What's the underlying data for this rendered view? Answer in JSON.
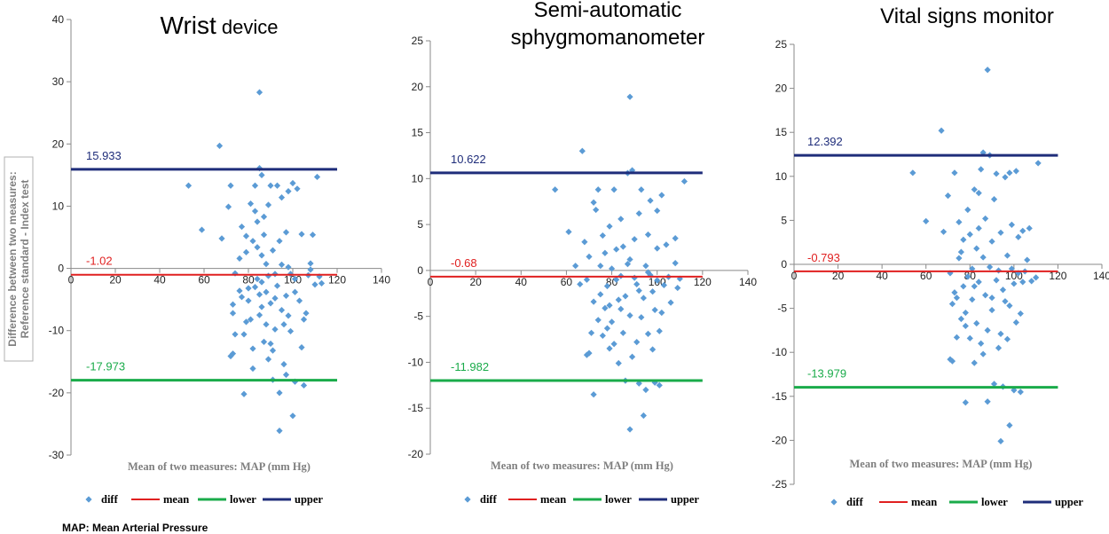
{
  "footnote": "MAP: Mean Arterial Pressure",
  "y_axis_title": [
    "Difference between two measures:",
    "Reference standard - Index test"
  ],
  "colors": {
    "diff": "#5b9bd5",
    "mean": "#e02020",
    "lower": "#1aab4a",
    "upper": "#1f2d7a"
  },
  "legend": [
    "diff",
    "mean",
    "lower",
    "upper"
  ],
  "chart_data": [
    {
      "type": "scatter",
      "title_main": "Wrist",
      "title_rest": " device",
      "xlabel": "Mean of two measures: MAP (mm Hg)",
      "xlim": [
        0,
        140
      ],
      "xticks": [
        0,
        20,
        40,
        60,
        80,
        100,
        120,
        140
      ],
      "ylim": [
        -30,
        40
      ],
      "yticks": [
        -30,
        -20,
        -10,
        0,
        10,
        20,
        30,
        40
      ],
      "line_xmax": 120,
      "mean": -1.02,
      "lower": -17.973,
      "upper": 15.933,
      "mean_label": "-1.02",
      "lower_label": "-17.973",
      "upper_label": "15.933",
      "points": [
        [
          53,
          13.3
        ],
        [
          59,
          6.2
        ],
        [
          67,
          19.7
        ],
        [
          68,
          4.8
        ],
        [
          71,
          9.9
        ],
        [
          72,
          13.3
        ],
        [
          74,
          -0.8
        ],
        [
          73,
          -5.8
        ],
        [
          73,
          -7.2
        ],
        [
          73,
          -13.7
        ],
        [
          72,
          -14.1
        ],
        [
          74,
          -10.6
        ],
        [
          76,
          1.6
        ],
        [
          77,
          -4.6
        ],
        [
          78,
          -10.6
        ],
        [
          77,
          6.7
        ],
        [
          78,
          -20.2
        ],
        [
          79,
          5.2
        ],
        [
          79,
          2.6
        ],
        [
          80,
          -3.2
        ],
        [
          80,
          -5.2
        ],
        [
          81,
          -8.2
        ],
        [
          81,
          10.4
        ],
        [
          82,
          -12.9
        ],
        [
          82,
          -16.1
        ],
        [
          83,
          13.3
        ],
        [
          83,
          9.2
        ],
        [
          84,
          -1.7
        ],
        [
          84,
          3.4
        ],
        [
          85,
          -4.2
        ],
        [
          85,
          -7.5
        ],
        [
          84,
          7.5
        ],
        [
          85,
          28.3
        ],
        [
          85,
          16.1
        ],
        [
          86,
          15.0
        ],
        [
          86,
          2.1
        ],
        [
          86,
          -2.2
        ],
        [
          87,
          -11.8
        ],
        [
          87,
          5.4
        ],
        [
          88,
          0.7
        ],
        [
          88,
          -3.8
        ],
        [
          88,
          -9.0
        ],
        [
          89,
          -14.6
        ],
        [
          89,
          10.2
        ],
        [
          90,
          13.3
        ],
        [
          90,
          -5.6
        ],
        [
          90,
          -12.1
        ],
        [
          91,
          2.9
        ],
        [
          91,
          -17.9
        ],
        [
          92,
          -0.9
        ],
        [
          92,
          -4.8
        ],
        [
          93,
          13.3
        ],
        [
          93,
          -2.8
        ],
        [
          94,
          -20.0
        ],
        [
          94,
          -26.1
        ],
        [
          94,
          4.4
        ],
        [
          95,
          11.4
        ],
        [
          95,
          -6.7
        ],
        [
          96,
          -9.0
        ],
        [
          96,
          -15.4
        ],
        [
          97,
          -17.1
        ],
        [
          97,
          5.8
        ],
        [
          97,
          -4.4
        ],
        [
          98,
          12.4
        ],
        [
          98,
          0.2
        ],
        [
          99,
          -0.9
        ],
        [
          99,
          -10.1
        ],
        [
          100,
          -23.7
        ],
        [
          100,
          13.7
        ],
        [
          101,
          -1.7
        ],
        [
          101,
          -3.8
        ],
        [
          101,
          -18.2
        ],
        [
          102,
          12.8
        ],
        [
          103,
          -5.2
        ],
        [
          104,
          5.5
        ],
        [
          104,
          -12.7
        ],
        [
          105,
          -8.2
        ],
        [
          105,
          -18.8
        ],
        [
          106,
          -7.2
        ],
        [
          107,
          -1.1
        ],
        [
          108,
          0.8
        ],
        [
          108,
          -0.2
        ],
        [
          109,
          5.4
        ],
        [
          110,
          -2.6
        ],
        [
          111,
          14.7
        ],
        [
          112,
          -1.3
        ],
        [
          113,
          -2.4
        ],
        [
          76,
          -3.6
        ],
        [
          79,
          -8.6
        ],
        [
          82,
          4.4
        ],
        [
          86,
          -6.2
        ],
        [
          89,
          -1.2
        ],
        [
          92,
          -9.8
        ],
        [
          95,
          0.6
        ],
        [
          98,
          -7.6
        ],
        [
          83,
          -3.0
        ],
        [
          87,
          8.3
        ],
        [
          91,
          -13.2
        ]
      ]
    },
    {
      "type": "scatter",
      "title_main": "Semi-automatic",
      "title_line2": "sphygmomanometer",
      "xlabel": "Mean of two measures: MAP (mm Hg)",
      "xlim": [
        0,
        140
      ],
      "xticks": [
        0,
        20,
        40,
        60,
        80,
        100,
        120,
        140
      ],
      "ylim": [
        -20,
        25
      ],
      "yticks": [
        -20,
        -15,
        -10,
        -5,
        0,
        5,
        10,
        15,
        20,
        25
      ],
      "line_xmax": 120,
      "mean": -0.68,
      "lower": -11.982,
      "upper": 10.622,
      "mean_label": "-0.68",
      "lower_label": "-11.982",
      "upper_label": "10.622",
      "points": [
        [
          55,
          8.8
        ],
        [
          61,
          4.2
        ],
        [
          67,
          13.0
        ],
        [
          68,
          3.1
        ],
        [
          69,
          -1.0
        ],
        [
          69,
          -9.2
        ],
        [
          70,
          -9.0
        ],
        [
          70,
          1.5
        ],
        [
          71,
          -6.8
        ],
        [
          72,
          -13.5
        ],
        [
          72,
          -3.4
        ],
        [
          73,
          6.6
        ],
        [
          74,
          -5.4
        ],
        [
          74,
          8.8
        ],
        [
          75,
          0.5
        ],
        [
          75,
          -2.6
        ],
        [
          76,
          -7.1
        ],
        [
          76,
          3.8
        ],
        [
          77,
          -4.1
        ],
        [
          77,
          1.9
        ],
        [
          78,
          -1.7
        ],
        [
          78,
          -6.3
        ],
        [
          79,
          4.8
        ],
        [
          79,
          -3.8
        ],
        [
          80,
          -5.6
        ],
        [
          80,
          0.2
        ],
        [
          81,
          8.8
        ],
        [
          81,
          -8.0
        ],
        [
          82,
          -1.0
        ],
        [
          82,
          2.3
        ],
        [
          83,
          -10.1
        ],
        [
          83,
          -3.2
        ],
        [
          84,
          5.6
        ],
        [
          84,
          -0.6
        ],
        [
          85,
          -6.8
        ],
        [
          85,
          2.6
        ],
        [
          86,
          -12.0
        ],
        [
          86,
          -2.8
        ],
        [
          87,
          10.6
        ],
        [
          87,
          0.7
        ],
        [
          88,
          18.9
        ],
        [
          88,
          -17.3
        ],
        [
          88,
          -4.9
        ],
        [
          89,
          10.9
        ],
        [
          89,
          -9.4
        ],
        [
          90,
          -0.8
        ],
        [
          90,
          3.4
        ],
        [
          91,
          -7.8
        ],
        [
          91,
          -1.5
        ],
        [
          92,
          6.2
        ],
        [
          92,
          -12.3
        ],
        [
          93,
          -5.1
        ],
        [
          93,
          8.8
        ],
        [
          94,
          -15.8
        ],
        [
          94,
          -3.0
        ],
        [
          95,
          0.5
        ],
        [
          95,
          -13.0
        ],
        [
          96,
          -6.9
        ],
        [
          96,
          3.9
        ],
        [
          97,
          7.6
        ],
        [
          97,
          -0.5
        ],
        [
          98,
          -8.6
        ],
        [
          98,
          -2.3
        ],
        [
          99,
          -4.3
        ],
        [
          99,
          -12.2
        ],
        [
          100,
          -1.1
        ],
        [
          100,
          2.4
        ],
        [
          101,
          -6.6
        ],
        [
          101,
          -12.5
        ],
        [
          102,
          8.2
        ],
        [
          102,
          -4.6
        ],
        [
          103,
          -1.6
        ],
        [
          104,
          2.8
        ],
        [
          105,
          -0.7
        ],
        [
          106,
          -3.5
        ],
        [
          108,
          3.5
        ],
        [
          108,
          0.8
        ],
        [
          109,
          -1.9
        ],
        [
          110,
          -0.9
        ],
        [
          112,
          9.7
        ],
        [
          64,
          0.5
        ],
        [
          66,
          -1.5
        ],
        [
          72,
          7.4
        ],
        [
          79,
          -8.5
        ],
        [
          84,
          -4.2
        ],
        [
          88,
          1.2
        ],
        [
          92,
          -2.2
        ],
        [
          96,
          -0.2
        ],
        [
          100,
          6.5
        ]
      ]
    },
    {
      "type": "scatter",
      "title_main": "Vital signs monitor",
      "xlabel": "Mean of two measures: MAP (mm Hg)",
      "xlim": [
        0,
        140
      ],
      "xticks": [
        0,
        20,
        40,
        60,
        80,
        100,
        120,
        140
      ],
      "ylim": [
        -25,
        25
      ],
      "yticks": [
        -25,
        -20,
        -15,
        -10,
        -5,
        0,
        5,
        10,
        15,
        20,
        25
      ],
      "line_xmax": 120,
      "mean": -0.793,
      "lower": -13.979,
      "upper": 12.392,
      "mean_label": "-0.793",
      "lower_label": "-13.979",
      "upper_label": "12.392",
      "points": [
        [
          54,
          10.4
        ],
        [
          60,
          4.9
        ],
        [
          67,
          15.2
        ],
        [
          68,
          3.7
        ],
        [
          70,
          7.8
        ],
        [
          71,
          -1.0
        ],
        [
          71,
          -10.8
        ],
        [
          72,
          -11.0
        ],
        [
          72,
          -4.5
        ],
        [
          73,
          -3.2
        ],
        [
          73,
          10.4
        ],
        [
          74,
          -8.3
        ],
        [
          75,
          0.7
        ],
        [
          75,
          4.8
        ],
        [
          76,
          -6.2
        ],
        [
          76,
          1.4
        ],
        [
          77,
          -2.5
        ],
        [
          77,
          2.8
        ],
        [
          78,
          -15.7
        ],
        [
          78,
          -5.5
        ],
        [
          79,
          6.2
        ],
        [
          79,
          -1.4
        ],
        [
          80,
          -8.4
        ],
        [
          80,
          3.4
        ],
        [
          81,
          -0.5
        ],
        [
          81,
          -4.0
        ],
        [
          82,
          8.5
        ],
        [
          82,
          -11.2
        ],
        [
          83,
          1.8
        ],
        [
          83,
          -6.7
        ],
        [
          84,
          4.1
        ],
        [
          84,
          -2.0
        ],
        [
          85,
          10.8
        ],
        [
          85,
          -9.0
        ],
        [
          86,
          12.7
        ],
        [
          86,
          0.8
        ],
        [
          87,
          -3.5
        ],
        [
          87,
          5.2
        ],
        [
          88,
          22.1
        ],
        [
          88,
          -15.6
        ],
        [
          88,
          -7.5
        ],
        [
          89,
          -0.3
        ],
        [
          89,
          12.4
        ],
        [
          90,
          2.6
        ],
        [
          90,
          -5.2
        ],
        [
          91,
          -13.6
        ],
        [
          91,
          7.4
        ],
        [
          92,
          -1.8
        ],
        [
          92,
          10.3
        ],
        [
          93,
          -9.5
        ],
        [
          93,
          -0.7
        ],
        [
          94,
          -20.1
        ],
        [
          94,
          3.6
        ],
        [
          95,
          -13.9
        ],
        [
          95,
          -2.9
        ],
        [
          96,
          9.9
        ],
        [
          96,
          -4.2
        ],
        [
          97,
          -8.5
        ],
        [
          97,
          1.0
        ],
        [
          98,
          10.4
        ],
        [
          98,
          -18.3
        ],
        [
          99,
          -0.5
        ],
        [
          99,
          4.5
        ],
        [
          100,
          -14.3
        ],
        [
          100,
          -2.2
        ],
        [
          101,
          10.6
        ],
        [
          101,
          -6.6
        ],
        [
          102,
          -1.0
        ],
        [
          102,
          3.1
        ],
        [
          103,
          -14.5
        ],
        [
          103,
          -5.6
        ],
        [
          104,
          -2.0
        ],
        [
          104,
          3.8
        ],
        [
          105,
          -0.8
        ],
        [
          106,
          0.5
        ],
        [
          107,
          4.1
        ],
        [
          108,
          -1.9
        ],
        [
          110,
          -1.5
        ],
        [
          111,
          11.5
        ],
        [
          74,
          -3.8
        ],
        [
          78,
          -7.0
        ],
        [
          82,
          -2.5
        ],
        [
          86,
          -10.2
        ],
        [
          90,
          -3.8
        ],
        [
          94,
          -7.9
        ],
        [
          98,
          -4.7
        ],
        [
          84,
          8.1
        ]
      ]
    }
  ]
}
